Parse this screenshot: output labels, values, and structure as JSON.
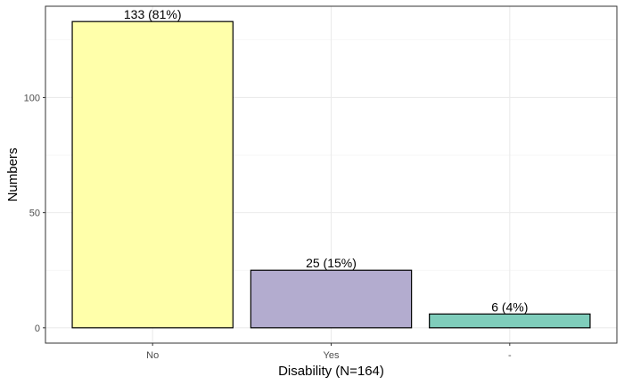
{
  "chart_data": {
    "type": "bar",
    "categories": [
      "No",
      "Yes",
      "-"
    ],
    "values": [
      133,
      25,
      6
    ],
    "data_labels": [
      "133 (81%)",
      "25 (15%)",
      "6 (4%)"
    ],
    "colors": [
      "#ffffaa",
      "#b3accf",
      "#7fcdbb"
    ],
    "xlabel": "Disability (N=164)",
    "ylabel": "Numbers",
    "yticks": [
      0,
      50,
      100
    ],
    "ytick_labels": [
      "0",
      "50",
      "100"
    ],
    "ylim": [
      -6.65,
      139.65
    ],
    "grid": true,
    "legend": "none"
  }
}
